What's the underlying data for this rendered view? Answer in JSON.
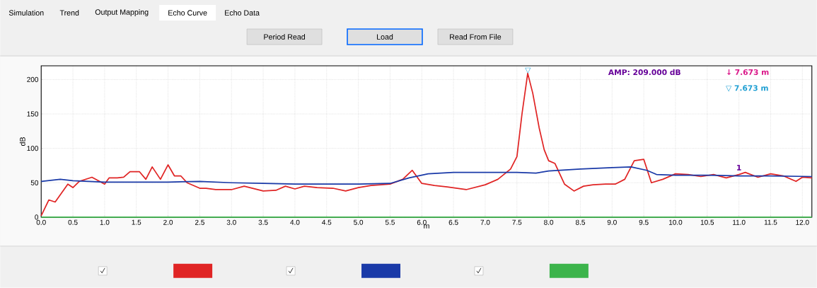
{
  "chart_data": {
    "type": "line",
    "xlabel": "m",
    "ylabel": "dB",
    "xlim": [
      0,
      12.15
    ],
    "ylim": [
      0,
      220
    ],
    "xticks": [
      {
        "value": 0,
        "label": "0.0"
      },
      0.5,
      {
        "value": 1,
        "label": "1.0"
      },
      1.5,
      {
        "value": 2,
        "label": "2.0"
      },
      2.5,
      {
        "value": 3,
        "label": "3.0"
      },
      3.5,
      {
        "value": 4,
        "label": "4.0"
      },
      4.5,
      {
        "value": 5,
        "label": "5.0"
      },
      5.5,
      {
        "value": 6,
        "label": "6.0"
      },
      6.5,
      {
        "value": 7,
        "label": "7.0"
      },
      7.5,
      {
        "value": 8,
        "label": "8.0"
      },
      8.5,
      {
        "value": 9,
        "label": "9.0"
      },
      9.5,
      {
        "value": 10,
        "label": "10.0"
      },
      10.5,
      {
        "value": 11,
        "label": "11.0"
      },
      11.5,
      {
        "value": 12,
        "label": "12.0"
      }
    ],
    "yticks": [
      0,
      50,
      100,
      150,
      200
    ],
    "grid": true,
    "series": [
      {
        "color": "#e02424",
        "x": [
          0.0,
          0.12,
          0.22,
          0.42,
          0.5,
          0.6,
          0.8,
          1.0,
          1.07,
          1.2,
          1.3,
          1.4,
          1.55,
          1.65,
          1.75,
          1.88,
          2.0,
          2.1,
          2.2,
          2.3,
          2.5,
          2.6,
          2.75,
          3.0,
          3.2,
          3.5,
          3.7,
          3.85,
          4.0,
          4.15,
          4.35,
          4.6,
          4.8,
          5.0,
          5.2,
          5.5,
          5.7,
          5.85,
          6.0,
          6.2,
          6.4,
          6.7,
          7.0,
          7.2,
          7.4,
          7.5,
          7.58,
          7.67,
          7.75,
          7.85,
          7.93,
          8.0,
          8.1,
          8.25,
          8.4,
          8.55,
          8.7,
          8.9,
          9.05,
          9.2,
          9.35,
          9.5,
          9.62,
          9.8,
          10.0,
          10.2,
          10.4,
          10.6,
          10.8,
          11.0,
          11.1,
          11.3,
          11.5,
          11.7,
          11.9,
          12.0,
          12.15
        ],
        "values": [
          2,
          25,
          22,
          48,
          43,
          52,
          58,
          48,
          57,
          57,
          58,
          66,
          66,
          55,
          73,
          55,
          76,
          60,
          60,
          50,
          42,
          42,
          40,
          40,
          45,
          38,
          39,
          45,
          41,
          45,
          43,
          42,
          38,
          43,
          46,
          48,
          55,
          68,
          49,
          46,
          44,
          40,
          47,
          55,
          70,
          88,
          150,
          209,
          180,
          130,
          98,
          82,
          78,
          48,
          38,
          45,
          47,
          48,
          48,
          55,
          82,
          84,
          50,
          55,
          63,
          62,
          59,
          62,
          57,
          62,
          65,
          58,
          63,
          60,
          52,
          58,
          57
        ]
      },
      {
        "color": "#1a3aa8",
        "x": [
          0,
          0.3,
          0.5,
          1.0,
          2.0,
          2.5,
          3.0,
          3.5,
          4.0,
          5.0,
          5.5,
          5.8,
          6.1,
          6.5,
          7.0,
          7.5,
          7.8,
          8.0,
          8.5,
          9.0,
          9.3,
          9.55,
          9.7,
          10.0,
          10.5,
          11.0,
          11.5,
          12.15
        ],
        "values": [
          52,
          55,
          53,
          51,
          51,
          52,
          50,
          49,
          48,
          48,
          49,
          57,
          63,
          65,
          65,
          65,
          64,
          67,
          70,
          72,
          73,
          68,
          62,
          61,
          61,
          60,
          60,
          59
        ]
      },
      {
        "color": "#3cb44b",
        "x": [
          0,
          12.15
        ],
        "values": [
          0,
          0
        ]
      }
    ],
    "annotations": [
      "Simulation",
      "Trend",
      "Output Mapping",
      "Echo Curve",
      "Echo Data",
      "Period Read",
      "Load",
      "Read From File",
      "AMP: 209.000 dB",
      "↓ 7.673 m",
      "▽ 7.673 m",
      "1",
      {
        "text": "▽",
        "x": 7.673,
        "y": 213
      }
    ]
  }
}
